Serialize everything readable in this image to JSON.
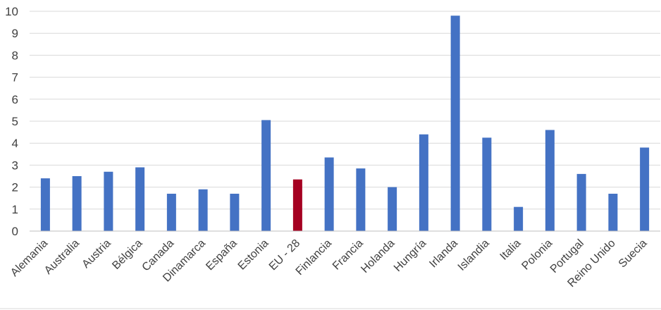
{
  "chart_data": {
    "type": "bar",
    "categories": [
      "Alemania",
      "Australia",
      "Austria",
      "Bélgica",
      "Canada",
      "Dinamarca",
      "España",
      "Estonia",
      "EU - 28",
      "Finlancia",
      "Francia",
      "Holanda",
      "Hungría",
      "Irlanda",
      "Islandia",
      "Italia",
      "Polonia",
      "Portugal",
      "Reino Unido",
      "Suecia"
    ],
    "values": [
      2.4,
      2.5,
      2.7,
      2.9,
      1.7,
      1.9,
      1.7,
      5.05,
      2.35,
      3.35,
      2.85,
      2.0,
      4.4,
      9.8,
      4.25,
      1.1,
      4.6,
      2.6,
      1.7,
      3.8
    ],
    "highlight_category": "EU - 28",
    "colors": {
      "default": "#4472C4",
      "highlight": "#A50021",
      "grid": "#D9D9D9",
      "axis": "#BFBFBF",
      "text": "#404040"
    },
    "ylim": [
      0,
      10
    ],
    "yticks": [
      0,
      1,
      2,
      3,
      4,
      5,
      6,
      7,
      8,
      9,
      10
    ],
    "grid": true,
    "legend": "none"
  }
}
